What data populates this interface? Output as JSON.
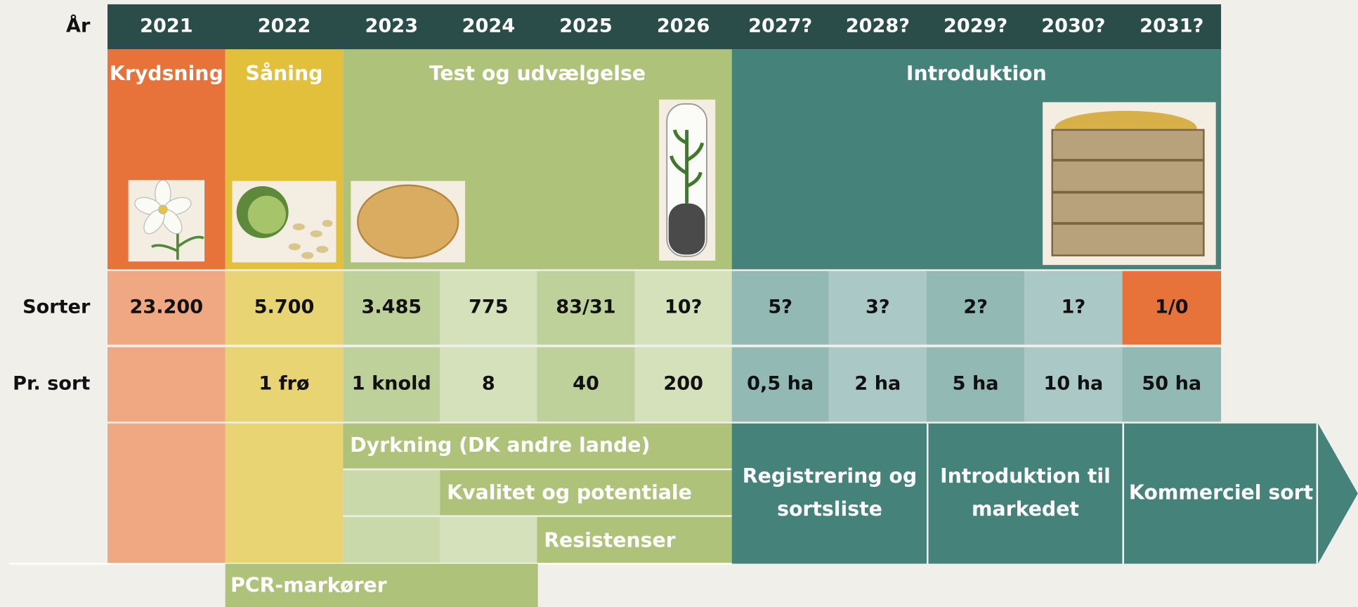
{
  "header": {
    "label": "År",
    "years": [
      "2021",
      "2022",
      "2023",
      "2024",
      "2025",
      "2026",
      "2027?",
      "2028?",
      "2029?",
      "2030?",
      "2031?"
    ]
  },
  "phases": [
    {
      "label": "Krydsning"
    },
    {
      "label": "Såning"
    },
    {
      "label": "Test og udvælgelse"
    },
    {
      "label": "Introduktion"
    }
  ],
  "rows": [
    {
      "label": "Sorter",
      "values": [
        "23.200",
        "5.700",
        "3.485",
        "775",
        "83/31",
        "10?",
        "5?",
        "3?",
        "2?",
        "1?",
        "1/0"
      ]
    },
    {
      "label": "Pr. sort",
      "values": [
        null,
        "1 frø",
        "1 knold",
        "8",
        "40",
        "200",
        "0,5 ha",
        "2 ha",
        "5 ha",
        "10 ha",
        "50 ha"
      ]
    }
  ],
  "activities": [
    {
      "lines": [
        "Dyrkning (DK andre lande)"
      ]
    },
    {
      "lines": [
        "Kvalitet og potentiale"
      ]
    },
    {
      "lines": [
        "Resistenser"
      ]
    },
    {
      "lines": [
        "PCR-markører"
      ]
    },
    {
      "lines": [
        "Registrering og",
        "sortsliste"
      ]
    },
    {
      "lines": [
        "Introduktion til",
        "markedet"
      ]
    },
    {
      "lines": [
        "Kommerciel sort"
      ]
    }
  ]
}
